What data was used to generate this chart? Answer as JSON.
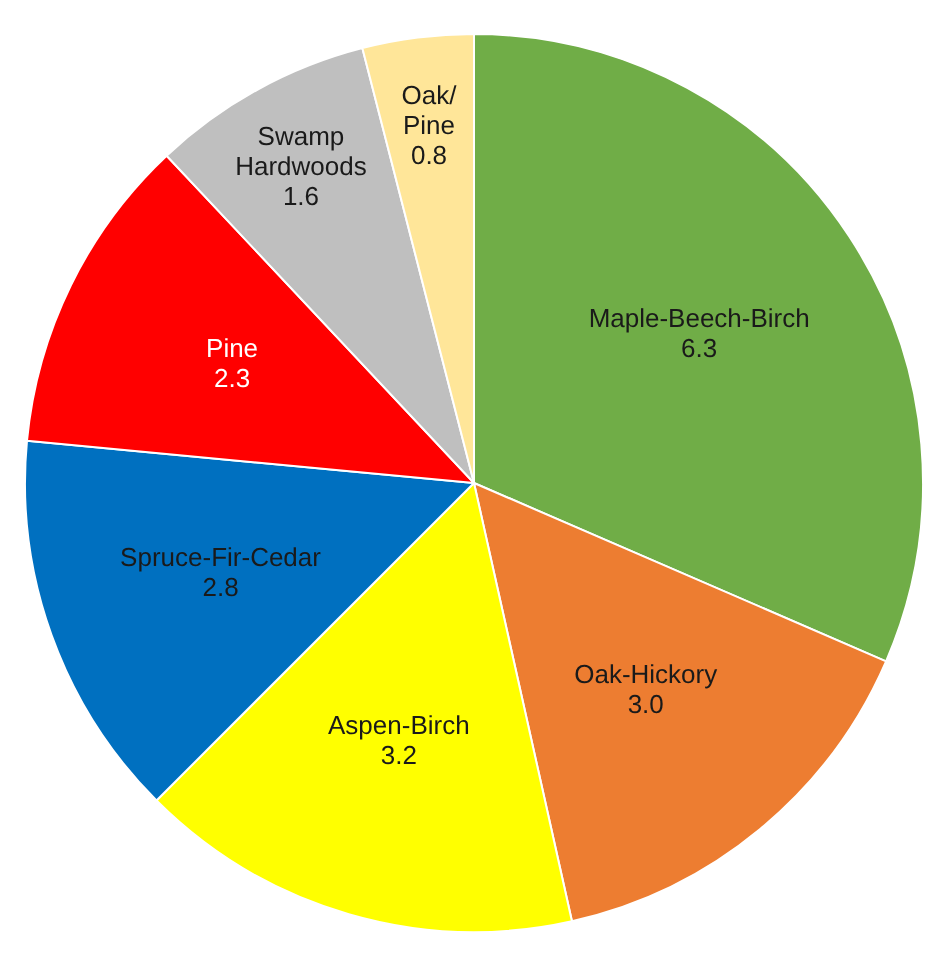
{
  "chart_data": {
    "type": "pie",
    "categories": [
      "Maple-Beech-Birch",
      "Oak-Hickory",
      "Aspen-Birch",
      "Spruce-Fir-Cedar",
      "Pine",
      "Swamp Hardwoods",
      "Oak/Pine"
    ],
    "values": [
      6.3,
      3.0,
      3.2,
      2.8,
      2.3,
      1.6,
      0.8
    ],
    "colors": [
      "#70ad47",
      "#ed7d31",
      "#ffff00",
      "#0070c0",
      "#ff0000",
      "#bfbfbf",
      "#ffe699"
    ],
    "value_labels": [
      "6.3",
      "3.0",
      "3.2",
      "2.8",
      "2.3",
      "1.6",
      "0.8"
    ],
    "legend": false
  }
}
